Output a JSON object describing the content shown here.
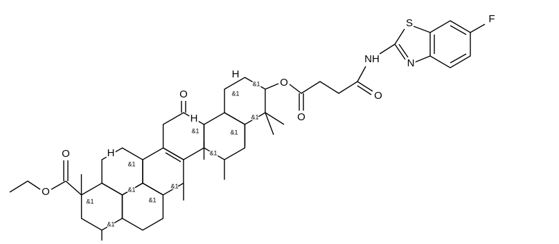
{
  "labels": [
    "F",
    "S",
    "N",
    "NH",
    "O",
    "O",
    "O",
    "O",
    "O",
    "O",
    "H",
    "H",
    "H"
  ],
  "stereo_labels": [
    "&1",
    "&1",
    "&1",
    "&1",
    "&1",
    "&1",
    "&1",
    "&1",
    "&1",
    "&1",
    "&1",
    "&1"
  ]
}
